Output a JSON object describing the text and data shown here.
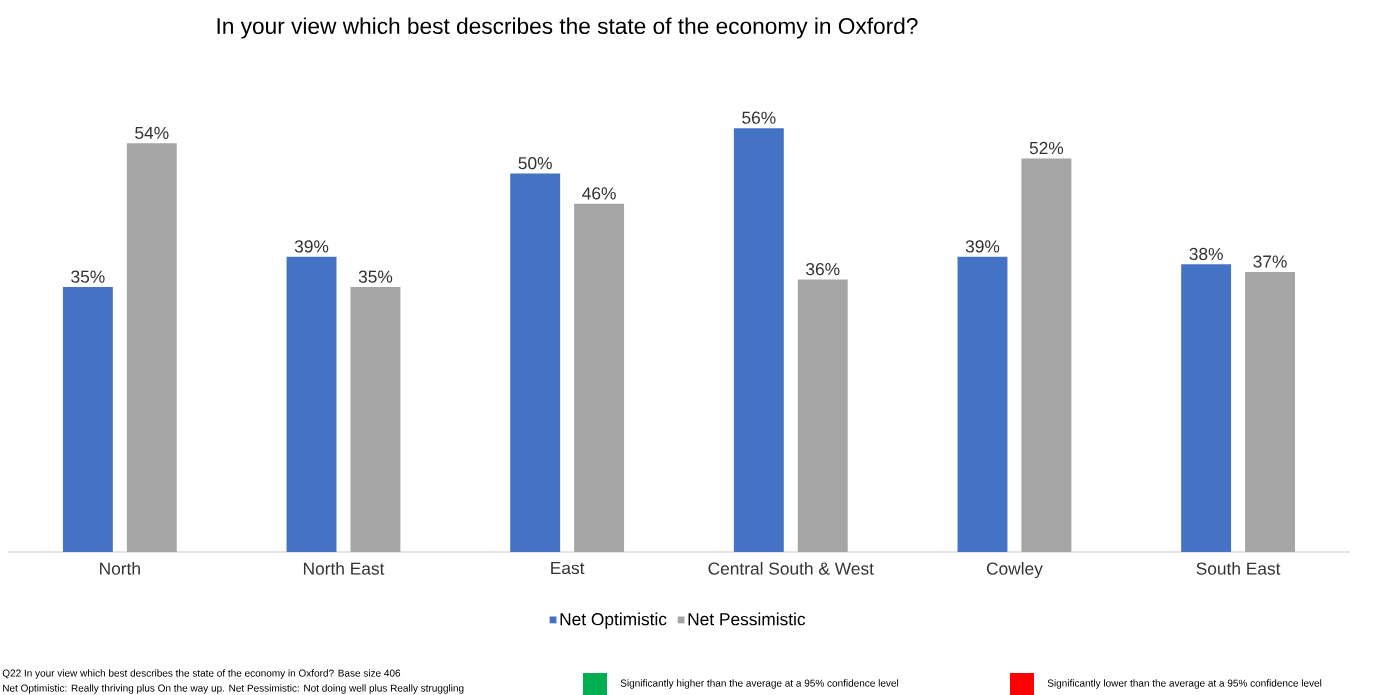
{
  "chart_data": {
    "type": "bar",
    "title": "In your view which best describes the state of the economy in Oxford?",
    "categories": [
      "North",
      "North East",
      "East",
      "Central South & West",
      "Cowley",
      "South East"
    ],
    "series": [
      {
        "name": "Net Optimistic",
        "color": "#4472c4",
        "values": [
          35,
          39,
          50,
          56,
          39,
          38
        ],
        "value_labels": [
          "35%",
          "39%",
          "50%",
          "56%",
          "39%",
          "38%"
        ]
      },
      {
        "name": "Net Pessimistic",
        "color": "#a5a5a5",
        "values": [
          54,
          35,
          46,
          36,
          52,
          37
        ],
        "value_labels": [
          "54%",
          "35%",
          "46%",
          "36%",
          "52%",
          "37%"
        ]
      }
    ],
    "legend": "bottom",
    "grid": false,
    "annotations": [
      "Q22 In your view which best describes the state of the economy in Oxford? Base size 406",
      "Net Optimistic: Really thriving plus On the way up. Net Pessimistic: Not doing well plus Really struggling",
      "Significantly higher than the average at a 95% confidence level",
      "Significantly lower than the average at a 95% confidence level"
    ]
  }
}
